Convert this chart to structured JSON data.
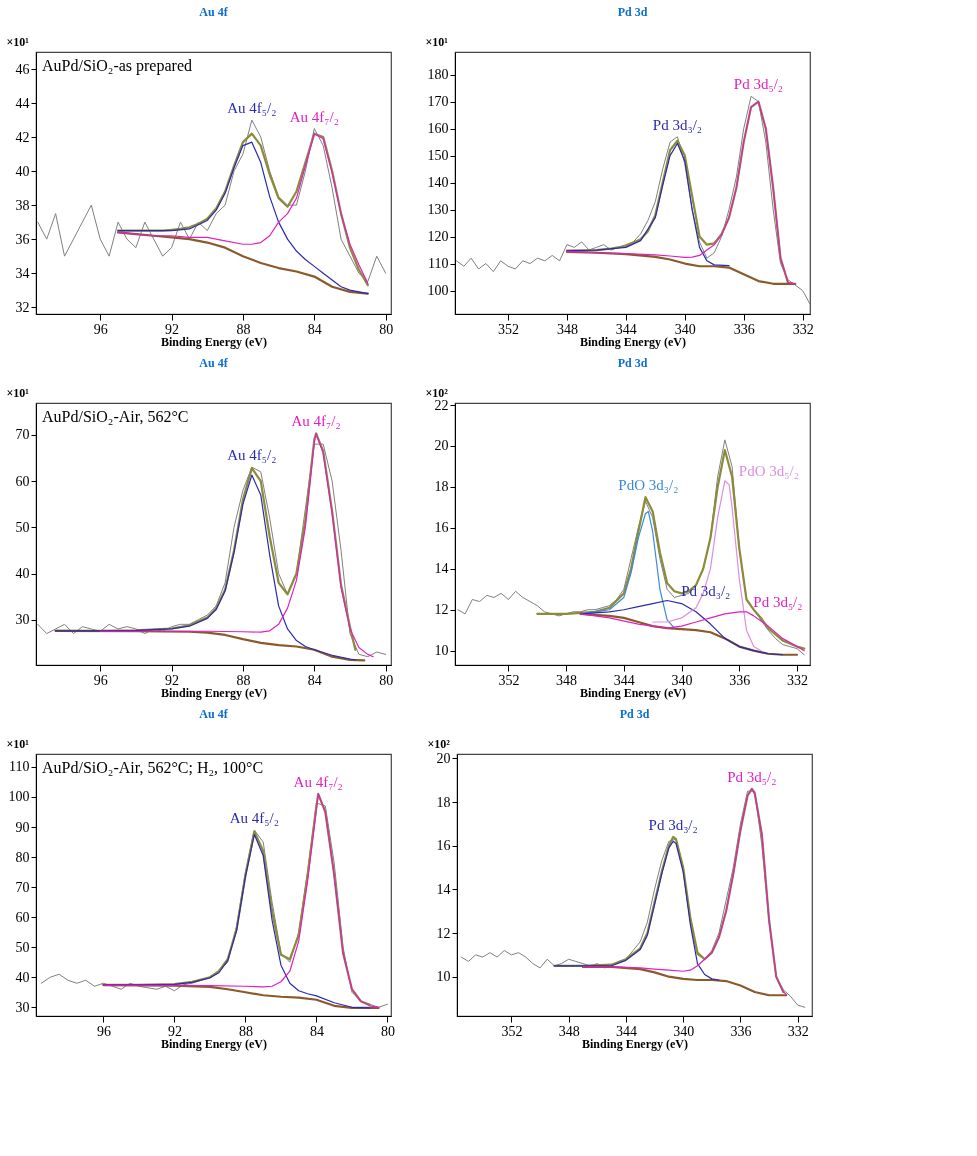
{
  "chart_data": [
    {
      "type": "line",
      "title": "Au 4f",
      "xlabel": "Binding Energy (eV)",
      "ylabel": "×10¹",
      "xlim": [
        99.6,
        79.7
      ],
      "ylim": [
        31.6,
        47
      ],
      "xticks": [
        96,
        92,
        88,
        84,
        80
      ],
      "yticks": [
        32,
        34,
        36,
        38,
        40,
        42,
        44,
        46
      ],
      "annotations": [
        "AuPd/SiO₂-as prepared"
      ],
      "x": [
        99.5,
        99,
        98.5,
        98,
        97.5,
        97,
        96.5,
        96,
        95.5,
        95,
        94.5,
        94,
        93.5,
        93,
        92.5,
        92,
        91.5,
        91,
        90.5,
        90,
        89.5,
        89,
        88.5,
        88,
        87.5,
        87,
        86.5,
        86,
        85.5,
        85,
        84.5,
        84,
        83.5,
        83,
        82.5,
        82,
        81.5,
        81,
        80.5,
        80
      ],
      "series": [
        {
          "color": "#808080",
          "values": [
            37,
            36,
            37.5,
            35,
            36,
            37,
            38,
            36,
            35,
            37,
            36,
            35.5,
            37,
            36,
            35,
            35.5,
            37,
            36,
            37,
            36.5,
            37.5,
            38,
            40,
            41,
            43,
            42,
            40,
            38.5,
            38,
            38,
            40,
            42.5,
            41.5,
            39,
            36,
            35,
            34,
            33.5,
            35,
            34
          ]
        },
        {
          "color": "#8b8b3a",
          "x": [
            95,
            94.5,
            94,
            93.5,
            93,
            92.5,
            92,
            91.5,
            91,
            90.5,
            90,
            89.5,
            89,
            88.5,
            88,
            87.5,
            87,
            86.5,
            86,
            85.5,
            85,
            84.5,
            84,
            83.5,
            83,
            82.5,
            82,
            81.5,
            81
          ],
          "values": [
            36.5,
            36.5,
            36.5,
            36.5,
            36.5,
            36.5,
            36.55,
            36.6,
            36.7,
            36.9,
            37.2,
            37.8,
            38.8,
            40.3,
            41.7,
            42.2,
            41.5,
            39.8,
            38.4,
            37.9,
            38.8,
            40.5,
            42.2,
            42,
            40,
            37.5,
            35.5,
            34.2,
            33.3
          ]
        },
        {
          "name": "Au 4f₅/₂",
          "color": "#2a2ab0",
          "x": [
            95,
            94,
            93,
            92,
            91,
            90,
            89.5,
            89,
            88.5,
            88,
            87.5,
            87,
            86.5,
            86,
            85.5,
            85,
            84.5,
            84,
            83.5,
            83,
            82.5,
            82,
            81.5,
            81
          ],
          "values": [
            36.5,
            36.5,
            36.5,
            36.5,
            36.6,
            37.1,
            37.7,
            38.7,
            40.2,
            41.5,
            41.7,
            40.5,
            38.5,
            37,
            36,
            35.3,
            34.8,
            34.4,
            34,
            33.6,
            33.2,
            33,
            32.9,
            32.8
          ]
        },
        {
          "name": "Au 4f₇/₂",
          "color": "#e020c0",
          "x": [
            95,
            94,
            93,
            92,
            91,
            90,
            89,
            88,
            87.5,
            87,
            86.5,
            86,
            85.5,
            85,
            84.5,
            84,
            83.5,
            83,
            82.5,
            82,
            81.5,
            81
          ],
          "values": [
            36.4,
            36.3,
            36.2,
            36.2,
            36.1,
            36.1,
            35.9,
            35.7,
            35.7,
            35.8,
            36.2,
            37,
            37.5,
            38.4,
            40.3,
            42.2,
            41.9,
            39.9,
            37.5,
            35.7,
            34.5,
            33.4
          ]
        },
        {
          "color": "#8b5a2b",
          "x": [
            95,
            94,
            93,
            92,
            91,
            90,
            89,
            88,
            87,
            86,
            85,
            84,
            83,
            82,
            81
          ],
          "values": [
            36.4,
            36.3,
            36.2,
            36.1,
            36,
            35.8,
            35.5,
            35,
            34.6,
            34.3,
            34.1,
            33.8,
            33.2,
            32.9,
            32.8
          ]
        }
      ]
    },
    {
      "type": "line",
      "title": "Pd 3d",
      "xlabel": "Binding Energy (eV)",
      "ylabel": "×10¹",
      "xlim": [
        355.6,
        331.5
      ],
      "ylim": [
        91.3,
        188.4
      ],
      "xticks": [
        352,
        348,
        344,
        340,
        336,
        332
      ],
      "yticks": [
        100,
        110,
        120,
        130,
        140,
        150,
        160,
        170,
        180
      ],
      "x": [
        355.5,
        355,
        354.5,
        354,
        353.5,
        353,
        352.5,
        352,
        351.5,
        351,
        350.5,
        350,
        349.5,
        349,
        348.5,
        348,
        347.5,
        347,
        346.5,
        346,
        345.5,
        345,
        344.5,
        344,
        343.5,
        343,
        342.5,
        342,
        341.5,
        341,
        340.5,
        340,
        339.5,
        339,
        338.5,
        338,
        337.5,
        337,
        336.5,
        336,
        335.5,
        335,
        334.5,
        334,
        333.5,
        333,
        332.5,
        332,
        331.5
      ],
      "series": [
        {
          "color": "#808080",
          "values": [
            111,
            109,
            112,
            108,
            110,
            107,
            111,
            109,
            108,
            111,
            110,
            112,
            111,
            113,
            111,
            117,
            116,
            118,
            115,
            116,
            117,
            115,
            116,
            117,
            118,
            121,
            126,
            133,
            145,
            155,
            157,
            147,
            130,
            118,
            112,
            114,
            120,
            130,
            142,
            160,
            172,
            170,
            155,
            130,
            110,
            104,
            102,
            100,
            95
          ]
        },
        {
          "color": "#8b8b3a",
          "x": [
            348,
            347,
            346,
            345,
            344,
            343,
            342.5,
            342,
            341.5,
            341,
            340.5,
            340,
            339.5,
            339,
            338.5,
            338,
            337.5,
            337,
            336.5,
            336,
            335.5,
            335,
            334.5,
            334,
            333.5,
            333
          ],
          "values": [
            114.8,
            114.8,
            115,
            115.5,
            116.5,
            119,
            122,
            128,
            140,
            152,
            155.5,
            150,
            135,
            120,
            117,
            117.5,
            121,
            127,
            138,
            155,
            168,
            170,
            160,
            138,
            112,
            103
          ]
        },
        {
          "name": "Pd 3d₃/₂",
          "color": "#2a2ab0",
          "x": [
            348,
            346,
            344,
            343,
            342,
            341.5,
            341,
            340.5,
            340,
            339.5,
            339,
            338.5,
            338,
            337
          ],
          "values": [
            114.8,
            115,
            116,
            118.5,
            127,
            139,
            150,
            154.5,
            148,
            130,
            116,
            111,
            109.5,
            109.2
          ]
        },
        {
          "name": "Pd 3d₅/₂",
          "color": "#e020c0",
          "x": [
            348,
            346,
            344,
            342,
            341,
            340,
            339.5,
            339,
            338.5,
            338,
            337.5,
            337,
            336.5,
            336,
            335.5,
            335,
            334.5,
            334,
            333.5,
            333,
            332.5
          ],
          "values": [
            114.5,
            114,
            113.7,
            113.2,
            112.8,
            112.3,
            112.4,
            113,
            115,
            117,
            120.5,
            127,
            138,
            155,
            168,
            170,
            160,
            138,
            112,
            103,
            102.5
          ]
        },
        {
          "color": "#8b5a2b",
          "x": [
            348,
            346,
            344,
            342,
            341,
            340,
            339,
            338,
            337,
            336,
            335,
            334,
            333,
            332.5
          ],
          "values": [
            114.3,
            114,
            113.5,
            112.5,
            111.5,
            110,
            109,
            109,
            108.5,
            106,
            103.5,
            102.5,
            102.5,
            102.5
          ]
        }
      ]
    },
    {
      "type": "line",
      "title": "Au 4f",
      "xlabel": "Binding Energy (eV)",
      "ylabel": "×10¹",
      "xlim": [
        99.6,
        79.7
      ],
      "ylim": [
        20.2,
        76.9
      ],
      "xticks": [
        96,
        92,
        88,
        84,
        80
      ],
      "yticks": [
        30,
        40,
        50,
        60,
        70
      ],
      "annotations": [
        "AuPd/SiO₂-Air, 562°C"
      ],
      "x": [
        99.5,
        99,
        98.5,
        98,
        97.5,
        97,
        96.5,
        96,
        95.5,
        95,
        94.5,
        94,
        93.5,
        93,
        92.5,
        92,
        91.5,
        91,
        90.5,
        90,
        89.5,
        89,
        88.5,
        88,
        87.5,
        87,
        86.5,
        86,
        85.5,
        85,
        84.5,
        84,
        83.5,
        83,
        82.5,
        82,
        81.5,
        81,
        80.5,
        80
      ],
      "series": [
        {
          "color": "#808080",
          "values": [
            29,
            27,
            28,
            29,
            27,
            28.5,
            28,
            27.5,
            29,
            28,
            28.5,
            28,
            27,
            28,
            27.5,
            28.5,
            29,
            29,
            30,
            31,
            33,
            38,
            50,
            58,
            63,
            62,
            52,
            40,
            35.5,
            40,
            54,
            68,
            68,
            60,
            45,
            27,
            22.5,
            22,
            23,
            22.5
          ]
        },
        {
          "color": "#8b8b3a",
          "x": [
            98.5,
            96,
            94,
            92,
            91,
            90,
            89.5,
            89,
            88.5,
            88,
            87.5,
            87,
            86.5,
            86,
            85.5,
            85,
            84.5,
            84,
            83.9,
            83.5,
            83,
            82.5,
            82,
            81.7
          ],
          "values": [
            27.6,
            27.6,
            27.7,
            28.1,
            28.8,
            30.5,
            32.5,
            36.5,
            45,
            56,
            62.8,
            60,
            48,
            38,
            35.5,
            40,
            51.5,
            69,
            70.3,
            66.5,
            53.5,
            37.5,
            28.5,
            23.5
          ]
        },
        {
          "name": "Au 4f₅/₂",
          "color": "#2a2ab0",
          "x": [
            98.5,
            96,
            94,
            92,
            91,
            90,
            89.5,
            89,
            88.5,
            88,
            87.5,
            87,
            86.5,
            86,
            85.5,
            85,
            84.5,
            84,
            83,
            82,
            81.7
          ],
          "values": [
            27.6,
            27.6,
            27.7,
            28,
            28.6,
            30.3,
            32.2,
            36.2,
            44.5,
            55,
            61.3,
            57,
            44,
            33,
            28,
            25.5,
            24.2,
            23.5,
            22.3,
            21.5,
            21.3
          ]
        },
        {
          "name": "Au 4f₇/₂",
          "color": "#e020c0",
          "x": [
            96,
            94,
            92,
            90,
            88,
            87,
            86.5,
            86,
            85.5,
            85,
            84.5,
            84,
            83.9,
            83.5,
            83,
            82.5,
            82,
            81.5,
            81,
            80.7
          ],
          "values": [
            27.5,
            27.5,
            27.5,
            27.5,
            27.4,
            27.3,
            27.6,
            29,
            32.5,
            38.5,
            50,
            68.5,
            70.3,
            66,
            53,
            37,
            28,
            24,
            22.5,
            22
          ]
        },
        {
          "color": "#8b5a2b",
          "x": [
            98.5,
            94,
            91,
            90,
            89,
            88,
            87,
            86,
            85,
            84,
            83,
            82,
            81.2
          ],
          "values": [
            27.6,
            27.5,
            27.4,
            27.2,
            26.7,
            25.8,
            25,
            24.5,
            24.2,
            23.5,
            22,
            21.3,
            21.2
          ]
        }
      ]
    },
    {
      "type": "line",
      "title": "Pd 3d",
      "xlabel": "Binding Energy (eV)",
      "ylabel": "×10²",
      "xlim": [
        355.7,
        331.1
      ],
      "ylim": [
        9.3,
        22.1
      ],
      "xticks": [
        352,
        348,
        344,
        340,
        336,
        332
      ],
      "yticks": [
        10,
        12,
        14,
        16,
        18,
        20,
        22
      ],
      "x": [
        355.5,
        355,
        354.5,
        354,
        353.5,
        353,
        352.5,
        352,
        351.5,
        351,
        350.5,
        350,
        349.5,
        349,
        348.5,
        348,
        347.5,
        347,
        346.5,
        346,
        345.5,
        345,
        344.5,
        344,
        343.5,
        343,
        342.5,
        342,
        341.5,
        341,
        340.5,
        340,
        339.5,
        339,
        338.5,
        338,
        337.5,
        337,
        336.5,
        336,
        335.5,
        335,
        334.5,
        334,
        333.5,
        333,
        332.5,
        332,
        331.5
      ],
      "series": [
        {
          "color": "#808080",
          "values": [
            12,
            11.8,
            12.5,
            12.4,
            12.7,
            12.6,
            12.8,
            12.5,
            12.9,
            12.6,
            12.4,
            12.2,
            11.9,
            11.8,
            11.7,
            11.8,
            11.9,
            11.9,
            12,
            12,
            12.1,
            12.2,
            12.5,
            13,
            14.5,
            16,
            17.3,
            16.5,
            14.5,
            13,
            12.6,
            12.7,
            12.8,
            13.2,
            14,
            15.5,
            18.5,
            20.3,
            19,
            15,
            12.5,
            12,
            11.5,
            11,
            10.6,
            10.3,
            10.2,
            10.1,
            9.8
          ]
        },
        {
          "color": "#8b8b3a",
          "x": [
            350,
            348,
            346,
            345,
            344,
            343.5,
            343,
            342.5,
            342,
            341.5,
            341,
            340.5,
            340,
            339.5,
            339,
            338.5,
            338,
            337.5,
            337,
            336.5,
            336,
            335.5,
            335,
            334.5,
            334,
            333,
            332,
            331.5
          ],
          "values": [
            11.8,
            11.8,
            11.9,
            12.1,
            12.8,
            14,
            15.8,
            17.5,
            16.8,
            14.8,
            13.3,
            12.9,
            12.8,
            12.9,
            13.2,
            14,
            15.5,
            18,
            19.8,
            18.5,
            15,
            12.5,
            12,
            11.6,
            11.1,
            10.5,
            10.2,
            10.1
          ]
        },
        {
          "name": "PdO 3d₃/₂",
          "color": "#3a8ad8",
          "x": [
            347,
            346,
            345,
            344,
            343.5,
            343,
            342.5,
            342.3,
            342,
            341.5,
            341,
            340.5
          ],
          "values": [
            11.8,
            11.9,
            12,
            12.6,
            13.8,
            15.5,
            16.7,
            16.8,
            15.8,
            13,
            11.5,
            11.1
          ]
        },
        {
          "name": "Pd 3d₃/₂",
          "color": "#2a2ab0",
          "x": [
            347,
            345,
            344,
            343,
            342,
            341,
            340,
            339,
            338,
            337,
            336,
            335,
            334,
            333
          ],
          "values": [
            11.8,
            11.9,
            12,
            12.15,
            12.3,
            12.45,
            12.3,
            11.9,
            11.3,
            10.6,
            10.2,
            10,
            9.85,
            9.8
          ]
        },
        {
          "name": "PdO 3d₅/₂",
          "color": "#e08ce0",
          "x": [
            342,
            341,
            340,
            339,
            338.5,
            338,
            337.5,
            337,
            336.7,
            336.5,
            336,
            335.5,
            335,
            334.5
          ],
          "values": [
            11.4,
            11.4,
            11.6,
            12.1,
            12.8,
            14,
            16.5,
            18.3,
            18.1,
            17,
            13.5,
            11,
            10.2,
            10
          ]
        },
        {
          "name": "Pd 3d₅/₂",
          "color": "#e020c0",
          "x": [
            347,
            345,
            343,
            341,
            340,
            339,
            338,
            337,
            336,
            335.5,
            335,
            334,
            333,
            332,
            331.5
          ],
          "values": [
            11.8,
            11.6,
            11.3,
            11.1,
            11.2,
            11.4,
            11.6,
            11.8,
            11.9,
            11.9,
            11.7,
            11.2,
            10.6,
            10.2,
            10
          ]
        },
        {
          "color": "#8b5a2b",
          "x": [
            347,
            345,
            344,
            343,
            342,
            341,
            340,
            339,
            338,
            337,
            336,
            335,
            334,
            333,
            332
          ],
          "values": [
            11.8,
            11.7,
            11.6,
            11.4,
            11.2,
            11.1,
            11.05,
            11,
            10.9,
            10.6,
            10.2,
            10,
            9.85,
            9.8,
            9.8
          ]
        }
      ]
    },
    {
      "type": "line",
      "title": "Au 4f",
      "xlabel": "Binding Energy (eV)",
      "ylabel": "×10¹",
      "xlim": [
        99.8,
        79.8
      ],
      "ylim": [
        27.1,
        114.3
      ],
      "xticks": [
        96,
        92,
        88,
        84,
        80
      ],
      "yticks": [
        30,
        40,
        50,
        60,
        70,
        80,
        90,
        100,
        110
      ],
      "annotations": [
        "AuPd/SiO₂-Air, 562°C; H₂, 100°C"
      ],
      "x": [
        99.5,
        99,
        98.5,
        98,
        97.5,
        97,
        96.5,
        96,
        95.5,
        95,
        94.5,
        94,
        93.5,
        93,
        92.5,
        92,
        91.5,
        91,
        90.5,
        90,
        89.5,
        89,
        88.5,
        88,
        87.5,
        87,
        86.5,
        86,
        85.5,
        85,
        84.5,
        84,
        83.5,
        83,
        82.5,
        82,
        81.5,
        81,
        80.5,
        80
      ],
      "series": [
        {
          "color": "#808080",
          "values": [
            38,
            40,
            41,
            39,
            38,
            39,
            37,
            38,
            37,
            36,
            38,
            37,
            36.5,
            36,
            37,
            35.5,
            37.5,
            38,
            39,
            40,
            42,
            45,
            57,
            75,
            89,
            85,
            65,
            48,
            45,
            55,
            75,
            98,
            97,
            78,
            50,
            35,
            32,
            31,
            30,
            31
          ]
        },
        {
          "color": "#8b8b3a",
          "x": [
            96,
            94,
            92,
            91,
            90,
            89.5,
            89,
            88.5,
            88,
            87.5,
            87,
            86.5,
            86,
            85.5,
            85,
            84.5,
            84,
            83.9,
            83.5,
            83,
            82.5,
            82,
            81.5,
            81
          ],
          "values": [
            37.5,
            37.5,
            37.7,
            38.5,
            40,
            42,
            46,
            56,
            74,
            88.5,
            82,
            62,
            47.5,
            46,
            54,
            74,
            97,
            101,
            95,
            74,
            48,
            36,
            32,
            30.8
          ]
        },
        {
          "name": "Au 4f₅/₂",
          "color": "#2a2ab0",
          "x": [
            96,
            94,
            92,
            91,
            90,
            89.5,
            89,
            88.5,
            88,
            87.5,
            87,
            86.5,
            86,
            85.5,
            85,
            84.5,
            84,
            83,
            82,
            81
          ],
          "values": [
            37.5,
            37.5,
            37.6,
            38.3,
            39.8,
            41.5,
            45.5,
            55.5,
            73.5,
            87.5,
            80.5,
            59,
            44,
            38,
            35.5,
            34.5,
            33.8,
            31.5,
            30,
            29.8
          ]
        },
        {
          "name": "Au 4f₇/₂",
          "color": "#e020c0",
          "x": [
            96,
            93,
            90,
            88,
            87,
            86.5,
            86,
            85.5,
            85,
            84.5,
            84,
            83.9,
            83.5,
            83,
            82.5,
            82,
            81.5,
            81,
            80.5
          ],
          "values": [
            37.4,
            37.3,
            37.2,
            37,
            36.8,
            37,
            38.5,
            42,
            52,
            72,
            96,
            101,
            95,
            74,
            48,
            36,
            32,
            30.5,
            30
          ]
        },
        {
          "color": "#8b5a2b",
          "x": [
            96,
            92,
            90,
            89,
            88,
            87,
            86,
            85,
            84,
            83,
            82,
            81,
            80.5
          ],
          "values": [
            37.4,
            37.2,
            36.8,
            36,
            35,
            34,
            33.5,
            33.2,
            32.5,
            30.5,
            29.8,
            29.8,
            29.8
          ]
        }
      ]
    },
    {
      "type": "line",
      "title": "Pd 3d",
      "xlabel": "Binding Energy (eV)",
      "ylabel": "×10²",
      "xlim": [
        355.8,
        331
      ],
      "ylim": [
        8.2,
        20.2
      ],
      "xticks": [
        352,
        348,
        344,
        340,
        336,
        332
      ],
      "yticks": [
        10,
        12,
        14,
        16,
        18,
        20
      ],
      "x": [
        355.5,
        355,
        354.5,
        354,
        353.5,
        353,
        352.5,
        352,
        351.5,
        351,
        350.5,
        350,
        349.5,
        349,
        348.5,
        348,
        347.5,
        347,
        346.5,
        346,
        345.5,
        345,
        344.5,
        344,
        343.5,
        343,
        342.5,
        342,
        341.5,
        341,
        340.5,
        340,
        339.5,
        339,
        338.5,
        338,
        337.5,
        337,
        336.5,
        336,
        335.5,
        335,
        334.5,
        334,
        333.5,
        333,
        332.5,
        332,
        331.5
      ],
      "series": [
        {
          "color": "#808080",
          "values": [
            10.9,
            10.7,
            11,
            10.9,
            11.1,
            10.9,
            11.2,
            11,
            11.1,
            10.9,
            10.6,
            10.4,
            10.8,
            10.5,
            10.6,
            10.8,
            10.7,
            10.6,
            10.5,
            10.6,
            10.4,
            10.5,
            10.7,
            10.8,
            11.2,
            11.6,
            12.5,
            14,
            15.3,
            16.2,
            16.3,
            15,
            12.5,
            11,
            10.8,
            11.2,
            12,
            13.5,
            15,
            17,
            18.5,
            18.5,
            16,
            12.5,
            10,
            9.4,
            9.1,
            8.7,
            8.6
          ]
        },
        {
          "color": "#8b8b3a",
          "x": [
            349,
            347,
            345,
            344,
            343,
            342.5,
            342,
            341.5,
            341,
            340.7,
            340.5,
            340,
            339.5,
            339,
            338.5,
            338,
            337.5,
            337,
            336.5,
            336,
            335.5,
            335.2,
            335,
            334.5,
            334,
            333.5,
            333
          ],
          "values": [
            10.5,
            10.5,
            10.55,
            10.8,
            11.3,
            12,
            13.4,
            14.8,
            16,
            16.4,
            16.3,
            15,
            12.7,
            11.1,
            10.8,
            11.1,
            11.8,
            13,
            14.7,
            16.7,
            18.3,
            18.6,
            18.4,
            16.5,
            12.6,
            10,
            9.3
          ]
        },
        {
          "name": "Pd 3d₃/₂",
          "color": "#2a2ab0",
          "x": [
            349,
            347,
            345,
            344,
            343,
            342.5,
            342,
            341.5,
            341,
            340.7,
            340.5,
            340,
            339.5,
            339,
            338.5,
            338,
            337.5
          ],
          "values": [
            10.5,
            10.5,
            10.5,
            10.75,
            11.25,
            11.9,
            13.3,
            14.7,
            15.9,
            16.2,
            16.1,
            14.8,
            12.4,
            10.6,
            10.1,
            9.9,
            9.85
          ]
        },
        {
          "name": "Pd 3d₅/₂",
          "color": "#e020c0",
          "x": [
            347,
            345,
            343,
            342,
            341,
            340,
            339.5,
            339,
            338.5,
            338,
            337.5,
            337,
            336.5,
            336,
            335.5,
            335.2,
            335,
            334.5,
            334,
            333.5,
            333,
            332.8
          ],
          "values": [
            10.45,
            10.45,
            10.4,
            10.35,
            10.3,
            10.25,
            10.3,
            10.5,
            10.8,
            11.1,
            11.8,
            13,
            14.7,
            16.7,
            18.3,
            18.6,
            18.4,
            16.5,
            12.6,
            10,
            9.3,
            9.2
          ]
        },
        {
          "color": "#8b5a2b",
          "x": [
            347,
            345,
            343,
            342,
            341,
            340,
            339,
            338,
            337,
            336,
            335,
            334,
            333,
            332.8
          ],
          "values": [
            10.45,
            10.45,
            10.35,
            10.2,
            10,
            9.9,
            9.85,
            9.85,
            9.8,
            9.6,
            9.3,
            9.15,
            9.15,
            9.15
          ]
        }
      ]
    }
  ]
}
